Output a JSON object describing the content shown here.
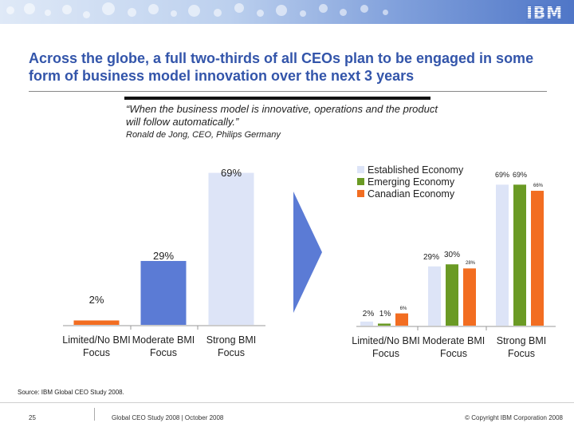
{
  "header": {
    "logo_text": "IBM",
    "headline": "Across the globe, a full two-thirds of all CEOs plan to be engaged in some form of business model innovation over the next 3 years"
  },
  "quote": {
    "text": "“When the business model is innovative, operations and the product will follow automatically.”",
    "author": "Ronald de Jong, CEO, Philips Germany"
  },
  "colors": {
    "overall": "#5b7bd5",
    "overall_light": "#dde4f7",
    "established": "#dde4f7",
    "emerging": "#6a9a24",
    "canadian": "#f26d21",
    "arrow": "#5b7bd5"
  },
  "chart_data": [
    {
      "type": "bar",
      "categories": [
        "Limited/No BMI Focus",
        "Moderate BMI Focus",
        "Strong BMI Focus"
      ],
      "values": [
        2,
        29,
        69
      ],
      "data_labels": [
        "2%",
        "29%",
        "69%"
      ],
      "ylim": [
        0,
        75
      ],
      "grid": false,
      "legend": "none"
    },
    {
      "type": "bar",
      "categories": [
        "Limited/No BMI Focus",
        "Moderate BMI Focus",
        "Strong BMI Focus"
      ],
      "series": [
        {
          "name": "Established Economy",
          "values": [
            2,
            29,
            69
          ],
          "data_labels": [
            "2%",
            "29%",
            "69%"
          ]
        },
        {
          "name": "Emerging Economy",
          "values": [
            1,
            30,
            69
          ],
          "data_labels": [
            "1%",
            "30%",
            "69%"
          ]
        },
        {
          "name": "Canadian Economy",
          "values": [
            6,
            28,
            66
          ],
          "data_labels": [
            "6%",
            "28%",
            "66%"
          ]
        }
      ],
      "ylim": [
        0,
        75
      ],
      "grid": false,
      "legend": "top-left"
    }
  ],
  "footer": {
    "source": "Source: IBM Global CEO Study 2008.",
    "page": "25",
    "study": "Global CEO Study 2008 | October 2008",
    "copyright": "© Copyright IBM Corporation 2008"
  }
}
